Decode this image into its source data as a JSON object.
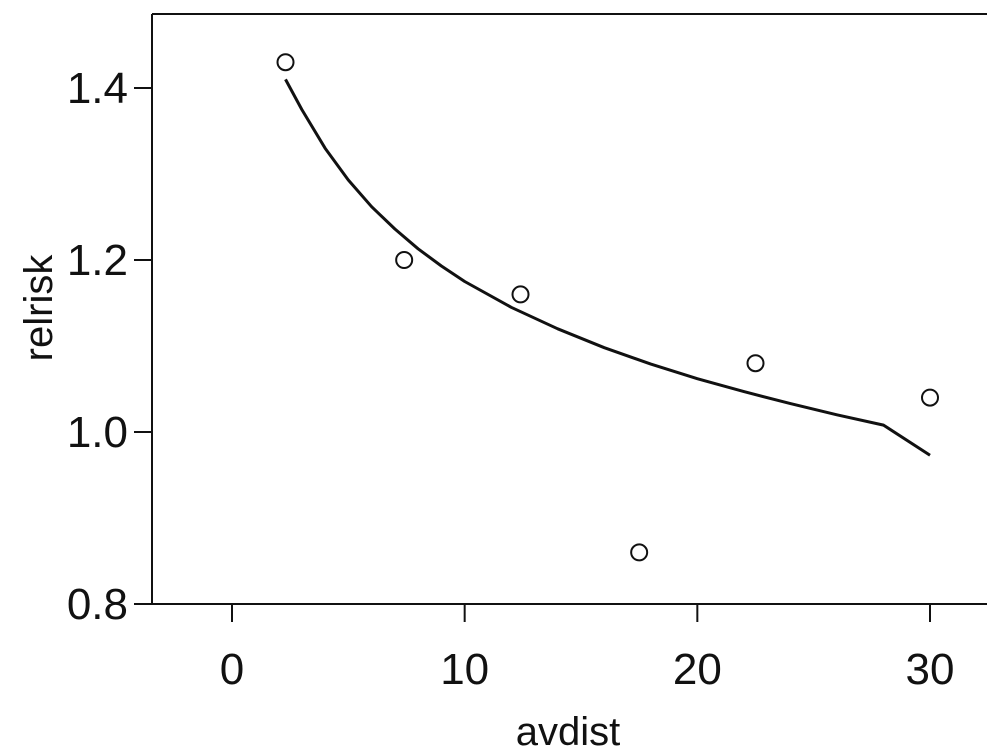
{
  "chart_data": {
    "type": "scatter",
    "xlabel": "avdist",
    "ylabel": "relrisk",
    "xlim": [
      -3,
      33
    ],
    "ylim": [
      0.8,
      1.5
    ],
    "x_ticks": [
      0,
      10,
      20,
      30
    ],
    "y_ticks": [
      0.8,
      1.0,
      1.2,
      1.4
    ],
    "x_tick_labels": [
      "0",
      "10",
      "20",
      "30"
    ],
    "y_tick_labels": [
      "0.8",
      "1.0",
      "1.2",
      "1.4"
    ],
    "grid": false,
    "legend": "none",
    "points": [
      {
        "x": 2.3,
        "y": 1.43
      },
      {
        "x": 7.4,
        "y": 1.2
      },
      {
        "x": 12.4,
        "y": 1.16
      },
      {
        "x": 17.5,
        "y": 0.86
      },
      {
        "x": 22.5,
        "y": 1.08
      },
      {
        "x": 30.0,
        "y": 1.04
      }
    ],
    "fitted_curve": {
      "x": [
        2.3,
        3,
        4,
        5,
        6,
        7,
        8,
        9,
        10,
        12,
        14,
        16,
        18,
        20,
        22,
        24,
        26,
        28,
        30
      ],
      "y": [
        1.41,
        1.375,
        1.33,
        1.293,
        1.262,
        1.236,
        1.213,
        1.193,
        1.175,
        1.145,
        1.12,
        1.098,
        1.079,
        1.062,
        1.047,
        1.033,
        1.02,
        1.008,
        0.973
      ]
    },
    "colors": {
      "point_stroke": "#111111",
      "curve": "#111111",
      "axis": "#111111"
    }
  }
}
